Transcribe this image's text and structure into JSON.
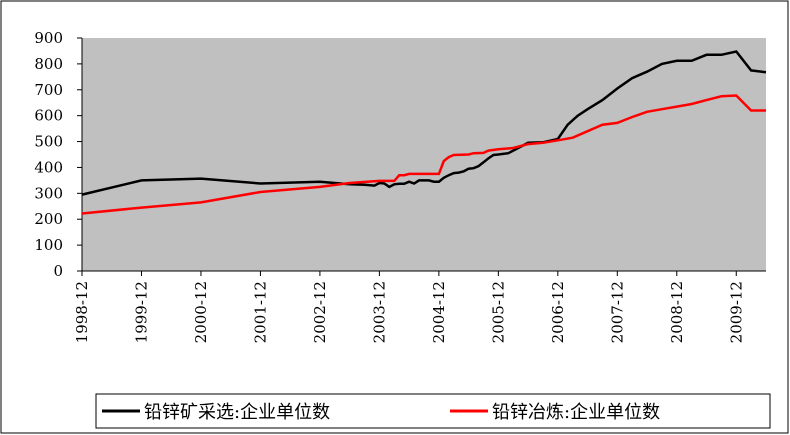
{
  "chart_data": {
    "type": "line",
    "xlim": [
      "1998-12",
      "2010-06"
    ],
    "xticks": [
      "1998-12",
      "1999-12",
      "2000-12",
      "2001-12",
      "2002-12",
      "2003-12",
      "2004-12",
      "2005-12",
      "2006-12",
      "2007-12",
      "2008-12",
      "2009-12"
    ],
    "ylim": [
      0,
      900
    ],
    "yticks": [
      0,
      100,
      200,
      300,
      400,
      500,
      600,
      700,
      800,
      900
    ],
    "grid": false,
    "legend": "bottom",
    "plot_background": "#c0c0c0",
    "series": [
      {
        "name": "铅锌矿采选:企业单位数",
        "color": "#000000",
        "x": [
          "1998-12",
          "1999-12",
          "2000-12",
          "2001-12",
          "2002-12",
          "2003-06",
          "2003-09",
          "2003-11",
          "2003-12",
          "2004-01",
          "2004-02",
          "2004-03",
          "2004-04",
          "2004-05",
          "2004-06",
          "2004-07",
          "2004-08",
          "2004-09",
          "2004-10",
          "2004-11",
          "2004-12",
          "2005-01",
          "2005-02",
          "2005-03",
          "2005-04",
          "2005-05",
          "2005-06",
          "2005-07",
          "2005-08",
          "2005-09",
          "2005-10",
          "2005-11",
          "2005-12",
          "2006-02",
          "2006-04",
          "2006-06",
          "2006-09",
          "2006-12",
          "2007-02",
          "2007-04",
          "2007-06",
          "2007-09",
          "2007-12",
          "2008-03",
          "2008-06",
          "2008-09",
          "2008-12",
          "2009-03",
          "2009-06",
          "2009-09",
          "2009-12",
          "2010-03",
          "2010-06"
        ],
        "values": [
          295,
          350,
          357,
          338,
          345,
          335,
          333,
          330,
          340,
          338,
          325,
          335,
          337,
          337,
          345,
          338,
          350,
          350,
          350,
          345,
          345,
          360,
          370,
          378,
          380,
          385,
          395,
          397,
          405,
          420,
          435,
          448,
          450,
          455,
          475,
          495,
          497,
          510,
          565,
          600,
          625,
          660,
          705,
          745,
          770,
          800,
          812,
          812,
          835,
          835,
          848,
          775,
          768
        ]
      },
      {
        "name": "铅锌冶炼:企业单位数",
        "color": "#ff0000",
        "x": [
          "1998-12",
          "1999-12",
          "2000-12",
          "2001-12",
          "2002-12",
          "2003-06",
          "2003-12",
          "2004-03",
          "2004-04",
          "2004-05",
          "2004-06",
          "2004-12",
          "2005-01",
          "2005-02",
          "2005-03",
          "2005-06",
          "2005-07",
          "2005-09",
          "2005-10",
          "2005-12",
          "2006-03",
          "2006-06",
          "2006-09",
          "2006-12",
          "2007-03",
          "2007-06",
          "2007-09",
          "2007-12",
          "2008-03",
          "2008-06",
          "2008-09",
          "2008-12",
          "2009-03",
          "2009-06",
          "2009-09",
          "2009-12",
          "2010-03",
          "2010-06"
        ],
        "values": [
          222,
          245,
          265,
          305,
          325,
          340,
          348,
          348,
          370,
          370,
          375,
          375,
          425,
          440,
          448,
          450,
          455,
          456,
          465,
          470,
          475,
          490,
          495,
          505,
          515,
          540,
          565,
          572,
          595,
          615,
          625,
          635,
          645,
          660,
          675,
          678,
          620,
          620
        ]
      }
    ]
  }
}
